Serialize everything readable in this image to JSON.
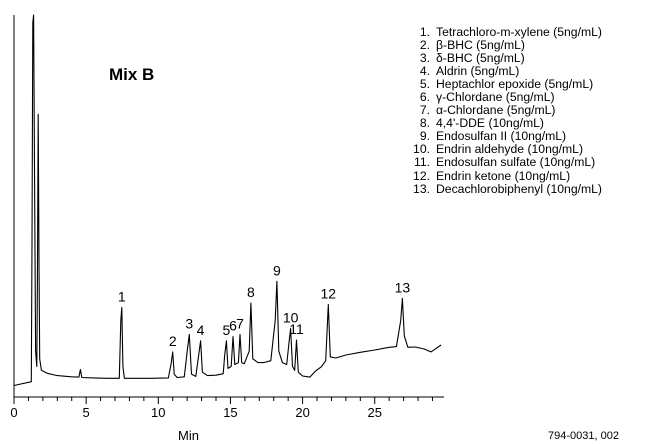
{
  "chart_data": {
    "type": "line",
    "title": "Mix B",
    "xlabel": "Min",
    "ylabel": "",
    "xlim": [
      0,
      29.8
    ],
    "ylim": [
      0,
      100
    ],
    "x_ticks": [
      0,
      5,
      10,
      15,
      20,
      25
    ],
    "x_tick_labels": [
      "0",
      "5",
      "10",
      "15",
      "20",
      "25"
    ],
    "grid": false,
    "series": [
      {
        "trace": [
          [
            0.0,
            3
          ],
          [
            1.2,
            4
          ],
          [
            1.25,
            40
          ],
          [
            1.3,
            98
          ],
          [
            1.36,
            100
          ],
          [
            1.42,
            60
          ],
          [
            1.5,
            12
          ],
          [
            1.58,
            8
          ],
          [
            1.62,
            30
          ],
          [
            1.68,
            74
          ],
          [
            1.73,
            35
          ],
          [
            1.78,
            10
          ],
          [
            1.9,
            7
          ],
          [
            2.3,
            6.2
          ],
          [
            3.0,
            5.6
          ],
          [
            4.0,
            5.3
          ],
          [
            4.5,
            5.2
          ],
          [
            4.6,
            7.2
          ],
          [
            4.7,
            5.1
          ],
          [
            5.5,
            5.0
          ],
          [
            6.5,
            4.9
          ],
          [
            7.3,
            4.9
          ],
          [
            7.4,
            20
          ],
          [
            7.47,
            23.4
          ],
          [
            7.55,
            8
          ],
          [
            7.65,
            4.9
          ],
          [
            8.5,
            4.9
          ],
          [
            9.5,
            4.9
          ],
          [
            10.7,
            5.0
          ],
          [
            10.9,
            9
          ],
          [
            11.0,
            11.8
          ],
          [
            11.1,
            6
          ],
          [
            11.3,
            5.1
          ],
          [
            11.8,
            5.3
          ],
          [
            12.0,
            12
          ],
          [
            12.15,
            16.4
          ],
          [
            12.3,
            6
          ],
          [
            12.6,
            5.4
          ],
          [
            12.8,
            11
          ],
          [
            12.93,
            14.7
          ],
          [
            13.06,
            6.5
          ],
          [
            13.4,
            5.6
          ],
          [
            14.0,
            5.7
          ],
          [
            14.5,
            6.1
          ],
          [
            14.6,
            11
          ],
          [
            14.72,
            14.7
          ],
          [
            14.83,
            7.5
          ],
          [
            15.05,
            8
          ],
          [
            15.18,
            15.8
          ],
          [
            15.3,
            8.5
          ],
          [
            15.55,
            9
          ],
          [
            15.66,
            16.4
          ],
          [
            15.78,
            9
          ],
          [
            15.95,
            8.7
          ],
          [
            16.3,
            12
          ],
          [
            16.42,
            24.6
          ],
          [
            16.55,
            10
          ],
          [
            16.9,
            9
          ],
          [
            17.3,
            9
          ],
          [
            17.8,
            9.5
          ],
          [
            18.1,
            20
          ],
          [
            18.22,
            30.3
          ],
          [
            18.35,
            12
          ],
          [
            18.6,
            9
          ],
          [
            18.9,
            8.5
          ],
          [
            19.05,
            14
          ],
          [
            19.17,
            17.9
          ],
          [
            19.3,
            8
          ],
          [
            19.45,
            7
          ],
          [
            19.58,
            14.9
          ],
          [
            19.7,
            6.5
          ],
          [
            20.0,
            5.5
          ],
          [
            20.5,
            5.2
          ],
          [
            20.9,
            6.8
          ],
          [
            21.3,
            7.9
          ],
          [
            21.6,
            9.5
          ],
          [
            21.78,
            24.2
          ],
          [
            21.92,
            10.5
          ],
          [
            22.3,
            10.2
          ],
          [
            23.0,
            11
          ],
          [
            24.0,
            11.7
          ],
          [
            25.0,
            12.3
          ],
          [
            26.0,
            13
          ],
          [
            26.5,
            13.2
          ],
          [
            26.8,
            20
          ],
          [
            26.92,
            25.8
          ],
          [
            27.05,
            16
          ],
          [
            27.3,
            13
          ],
          [
            27.8,
            13.1
          ],
          [
            28.4,
            12.6
          ],
          [
            28.9,
            11.8
          ],
          [
            29.2,
            12.6
          ],
          [
            29.6,
            13.6
          ]
        ]
      }
    ],
    "peaks": [
      {
        "label": "1",
        "x": 7.47
      },
      {
        "label": "2",
        "x": 11.0
      },
      {
        "label": "3",
        "x": 12.15
      },
      {
        "label": "4",
        "x": 12.93
      },
      {
        "label": "5",
        "x": 14.72
      },
      {
        "label": "6",
        "x": 15.18
      },
      {
        "label": "7",
        "x": 15.66
      },
      {
        "label": "8",
        "x": 16.42
      },
      {
        "label": "9",
        "x": 18.22
      },
      {
        "label": "10",
        "x": 19.17
      },
      {
        "label": "11",
        "x": 19.58
      },
      {
        "label": "12",
        "x": 21.78
      },
      {
        "label": "13",
        "x": 26.92
      }
    ]
  },
  "legend": [
    {
      "num": "1.",
      "text": "Tetrachloro-m-xylene (5ng/mL)"
    },
    {
      "num": "2.",
      "text": "β-BHC (5ng/mL)"
    },
    {
      "num": "3.",
      "text": "δ-BHC (5ng/mL)"
    },
    {
      "num": "4.",
      "text": "Aldrin (5ng/mL)"
    },
    {
      "num": "5.",
      "text": "Heptachlor epoxide (5ng/mL)"
    },
    {
      "num": "6.",
      "text": "γ-Chlordane (5ng/mL)"
    },
    {
      "num": "7.",
      "text": "α-Chlordane (5ng/mL)"
    },
    {
      "num": "8.",
      "text": "4,4'-DDE (10ng/mL)"
    },
    {
      "num": "9.",
      "text": "Endosulfan II (10ng/mL)"
    },
    {
      "num": "10.",
      "text": "Endrin aldehyde (10ng/mL)"
    },
    {
      "num": "11.",
      "text": "Endosulfan sulfate (10ng/mL)"
    },
    {
      "num": "12.",
      "text": "Endrin ketone (10ng/mL)"
    },
    {
      "num": "13.",
      "text": "Decachlorobiphenyl (10ng/mL)"
    }
  ],
  "catalog_number": "794-0031, 002"
}
